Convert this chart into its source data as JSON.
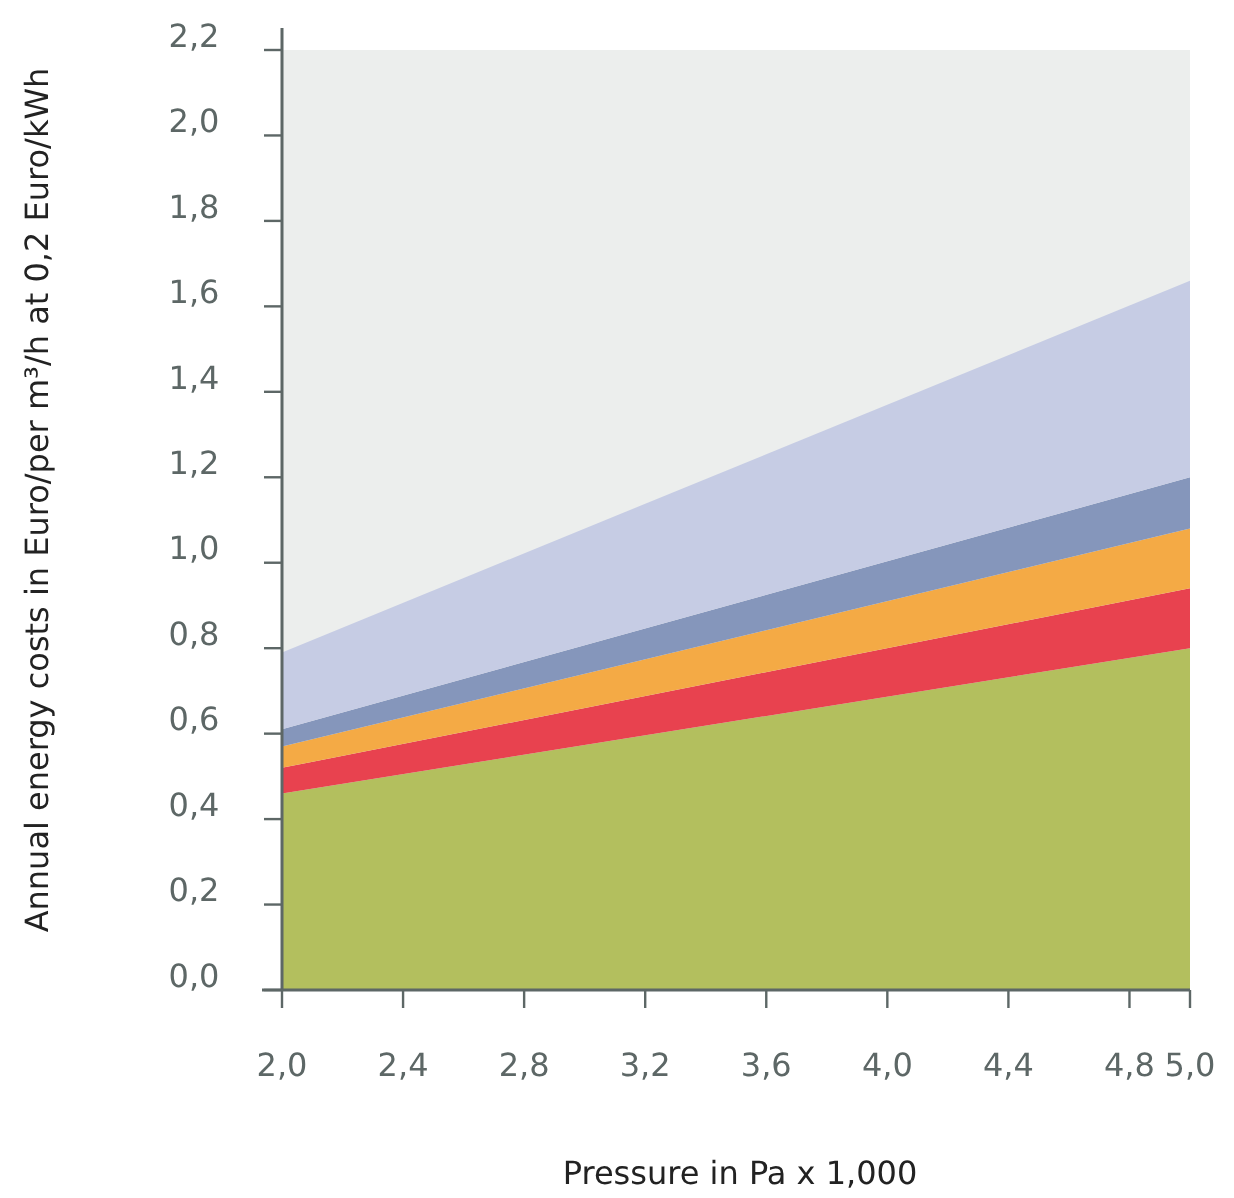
{
  "chart_data": {
    "type": "area",
    "stacked": true,
    "xlabel": "Pressure in Pa x 1,000",
    "ylabel": "Annual energy costs in Euro/per m³/h at 0,2 Euro/kWh",
    "x": [
      2.0,
      5.0
    ],
    "series": [
      {
        "color": "#b3bf5e",
        "values": [
          0.46,
          0.8
        ]
      },
      {
        "color": "#e8424f",
        "values": [
          0.06,
          0.14
        ]
      },
      {
        "color": "#f4aa45",
        "values": [
          0.05,
          0.14
        ]
      },
      {
        "color": "#8596bb",
        "values": [
          0.04,
          0.12
        ]
      },
      {
        "color": "#c6cce4",
        "values": [
          0.18,
          0.46
        ]
      }
    ],
    "xlim": [
      2.0,
      5.0
    ],
    "xticks": [
      {
        "value": 2.0,
        "label": "2,0"
      },
      {
        "value": 2.4,
        "label": "2,4"
      },
      {
        "value": 2.8,
        "label": "2,8"
      },
      {
        "value": 3.2,
        "label": "3,2"
      },
      {
        "value": 3.6,
        "label": "3,6"
      },
      {
        "value": 4.0,
        "label": "4,0"
      },
      {
        "value": 4.4,
        "label": "4,4"
      },
      {
        "value": 4.8,
        "label": "4,8"
      },
      {
        "value": 5.0,
        "label": "5,0"
      }
    ],
    "ylim": [
      0,
      2.2
    ],
    "yticks": [
      {
        "value": 0,
        "label": "0,0"
      },
      {
        "value": 0.2,
        "label": "0,2"
      },
      {
        "value": 0.4,
        "label": "0,4"
      },
      {
        "value": 0.6,
        "label": "0,6"
      },
      {
        "value": 0.8,
        "label": "0,8"
      },
      {
        "value": 1.0,
        "label": "1,0"
      },
      {
        "value": 1.2,
        "label": "1,2"
      },
      {
        "value": 1.4,
        "label": "1,4"
      },
      {
        "value": 1.6,
        "label": "1,6"
      },
      {
        "value": 1.8,
        "label": "1,8"
      },
      {
        "value": 2.0,
        "label": "2,0"
      },
      {
        "value": 2.2,
        "label": "2,2"
      }
    ]
  }
}
